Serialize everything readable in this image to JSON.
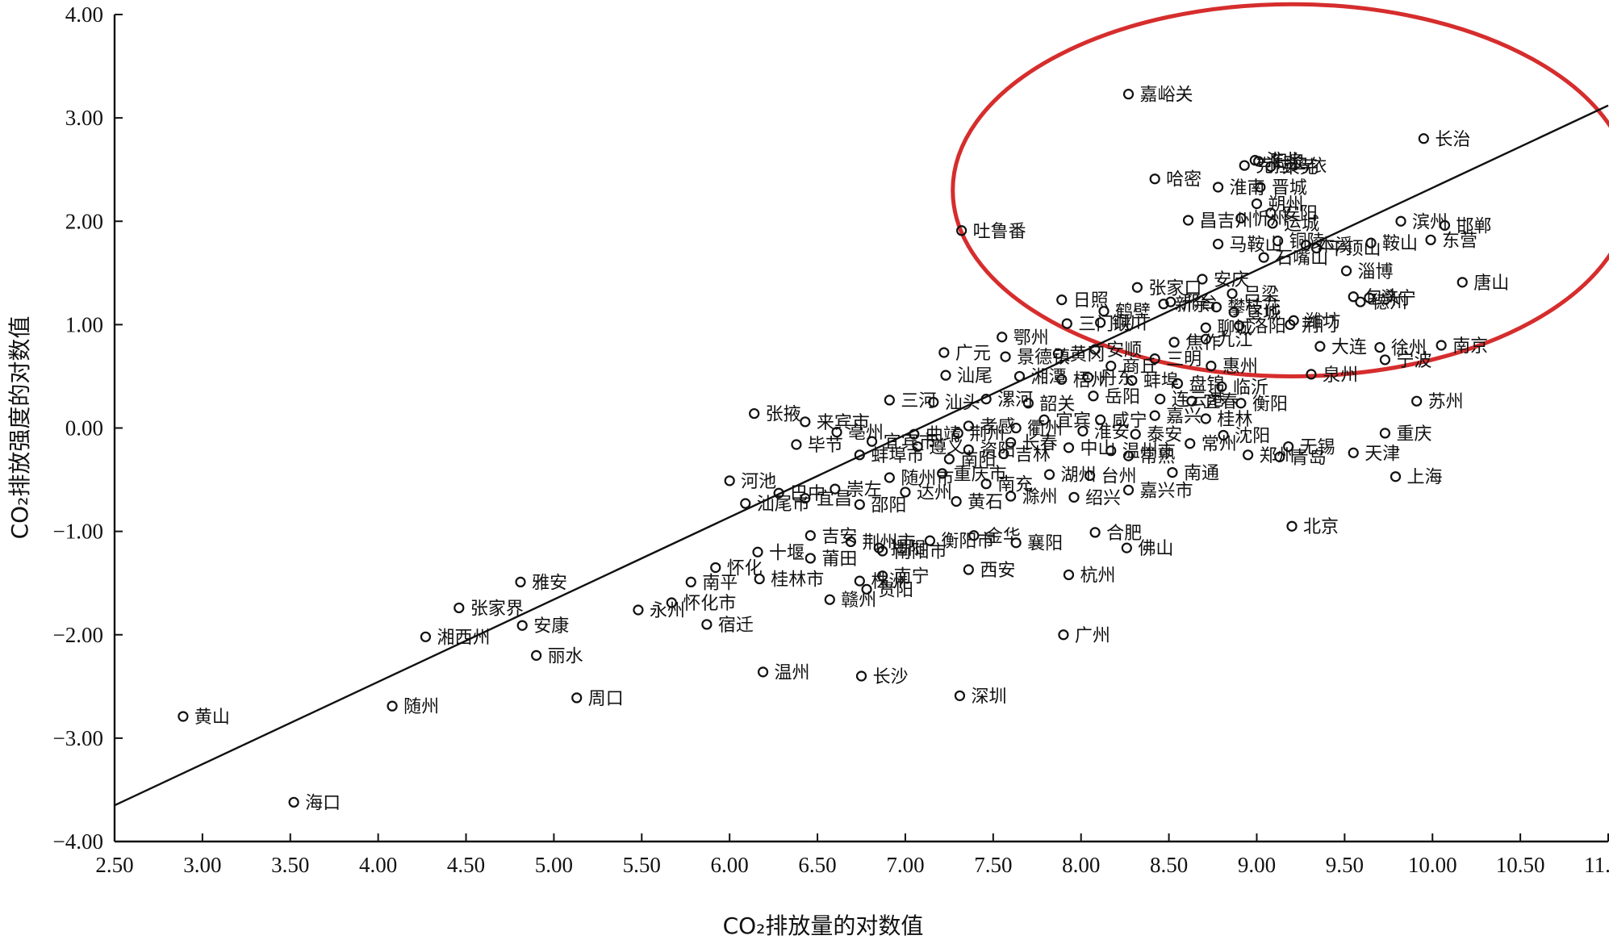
{
  "chart_data": {
    "type": "scatter",
    "xlabel": "CO₂排放量的对数值",
    "ylabel": "CO₂排放强度的对数值",
    "xlim": [
      2.5,
      11.0
    ],
    "ylim": [
      -4.0,
      4.0
    ],
    "xticks": [
      "2.50",
      "3.00",
      "3.50",
      "4.00",
      "4.50",
      "5.00",
      "5.50",
      "6.00",
      "6.50",
      "7.00",
      "7.50",
      "8.00",
      "8.50",
      "9.00",
      "9.50",
      "10.00",
      "10.50",
      "11.00"
    ],
    "yticks": [
      "−4.00",
      "−3.00",
      "−2.00",
      "−1.00",
      "0.00",
      "1.00",
      "2.00",
      "3.00",
      "4.00"
    ],
    "grid": false,
    "trendline": {
      "x1": 2.5,
      "y1": -3.65,
      "x2": 11.0,
      "y2": 3.12
    },
    "highlight_ellipse": {
      "cx": 9.2,
      "cy": 2.3,
      "rx": 1.93,
      "ry": 1.8,
      "color": "#d62d2d"
    },
    "points": [
      {
        "x": 8.27,
        "y": 3.23,
        "label": "嘉峪关"
      },
      {
        "x": 9.95,
        "y": 2.8,
        "label": "长治"
      },
      {
        "x": 9.01,
        "y": 2.58,
        "label": "阳泉"
      },
      {
        "x": 8.99,
        "y": 2.59,
        "label": "淮北"
      },
      {
        "x": 8.93,
        "y": 2.54,
        "label": "克拉玛依"
      },
      {
        "x": 9.08,
        "y": 2.53,
        "label": "莱芜"
      },
      {
        "x": 8.42,
        "y": 2.41,
        "label": "哈密"
      },
      {
        "x": 8.78,
        "y": 2.33,
        "label": "淮南"
      },
      {
        "x": 9.02,
        "y": 2.33,
        "label": "晋城"
      },
      {
        "x": 9.0,
        "y": 2.17,
        "label": "朔州"
      },
      {
        "x": 7.32,
        "y": 1.91,
        "label": "吐鲁番"
      },
      {
        "x": 8.61,
        "y": 2.01,
        "label": "昌吉州"
      },
      {
        "x": 8.91,
        "y": 2.03,
        "label": "忻州"
      },
      {
        "x": 9.08,
        "y": 2.08,
        "label": "安阳"
      },
      {
        "x": 9.09,
        "y": 1.98,
        "label": "运城"
      },
      {
        "x": 9.82,
        "y": 2.0,
        "label": "滨州"
      },
      {
        "x": 10.07,
        "y": 1.96,
        "label": "邯郸"
      },
      {
        "x": 9.99,
        "y": 1.82,
        "label": "东营"
      },
      {
        "x": 8.78,
        "y": 1.78,
        "label": "马鞍山"
      },
      {
        "x": 9.12,
        "y": 1.81,
        "label": "铜陵"
      },
      {
        "x": 9.28,
        "y": 1.77,
        "label": "本溪"
      },
      {
        "x": 9.34,
        "y": 1.74,
        "label": "平顶山"
      },
      {
        "x": 9.65,
        "y": 1.79,
        "label": "鞍山"
      },
      {
        "x": 9.04,
        "y": 1.65,
        "label": "石嘴山"
      },
      {
        "x": 9.51,
        "y": 1.52,
        "label": "淄博"
      },
      {
        "x": 10.17,
        "y": 1.41,
        "label": "唐山"
      },
      {
        "x": 8.32,
        "y": 1.36,
        "label": "张家口"
      },
      {
        "x": 8.69,
        "y": 1.44,
        "label": "安庆"
      },
      {
        "x": 8.86,
        "y": 1.3,
        "label": "吕梁"
      },
      {
        "x": 9.64,
        "y": 1.26,
        "label": "济宁"
      },
      {
        "x": 7.89,
        "y": 1.24,
        "label": "日照"
      },
      {
        "x": 8.13,
        "y": 1.13,
        "label": "鹤壁"
      },
      {
        "x": 8.47,
        "y": 1.2,
        "label": "新余"
      },
      {
        "x": 8.51,
        "y": 1.22,
        "label": "邢台"
      },
      {
        "x": 8.77,
        "y": 1.17,
        "label": "攀枝花"
      },
      {
        "x": 8.87,
        "y": 1.12,
        "label": "宣城"
      },
      {
        "x": 9.55,
        "y": 1.27,
        "label": "包头"
      },
      {
        "x": 9.21,
        "y": 1.04,
        "label": "潍坊"
      },
      {
        "x": 7.92,
        "y": 1.01,
        "label": "三门峡"
      },
      {
        "x": 8.11,
        "y": 1.02,
        "label": "铜川"
      },
      {
        "x": 8.9,
        "y": 0.99,
        "label": "洛阳"
      },
      {
        "x": 8.71,
        "y": 0.97,
        "label": "聊城"
      },
      {
        "x": 9.19,
        "y": 1.0,
        "label": "荆门"
      },
      {
        "x": 9.59,
        "y": 1.22,
        "label": "德州"
      },
      {
        "x": 9.36,
        "y": 0.79,
        "label": "大连"
      },
      {
        "x": 9.7,
        "y": 0.78,
        "label": "徐州"
      },
      {
        "x": 10.05,
        "y": 0.8,
        "label": "南京"
      },
      {
        "x": 8.71,
        "y": 0.86,
        "label": "九江"
      },
      {
        "x": 8.53,
        "y": 0.83,
        "label": "焦作"
      },
      {
        "x": 7.55,
        "y": 0.88,
        "label": "鄂州"
      },
      {
        "x": 7.22,
        "y": 0.73,
        "label": "广元"
      },
      {
        "x": 7.57,
        "y": 0.69,
        "label": "景德镇"
      },
      {
        "x": 7.87,
        "y": 0.72,
        "label": "黄冈"
      },
      {
        "x": 8.08,
        "y": 0.76,
        "label": "安顺"
      },
      {
        "x": 8.17,
        "y": 0.6,
        "label": "商丘"
      },
      {
        "x": 8.42,
        "y": 0.67,
        "label": "三明"
      },
      {
        "x": 8.74,
        "y": 0.6,
        "label": "惠州"
      },
      {
        "x": 9.73,
        "y": 0.66,
        "label": "宁波"
      },
      {
        "x": 7.23,
        "y": 0.51,
        "label": "汕尾"
      },
      {
        "x": 7.65,
        "y": 0.5,
        "label": "湘潭"
      },
      {
        "x": 7.89,
        "y": 0.47,
        "label": "梧州"
      },
      {
        "x": 8.04,
        "y": 0.49,
        "label": "丹东"
      },
      {
        "x": 8.29,
        "y": 0.46,
        "label": "蚌埠"
      },
      {
        "x": 8.55,
        "y": 0.43,
        "label": "盘锦"
      },
      {
        "x": 8.8,
        "y": 0.4,
        "label": "临沂"
      },
      {
        "x": 9.31,
        "y": 0.52,
        "label": "泉州"
      },
      {
        "x": 6.91,
        "y": 0.27,
        "label": "三河"
      },
      {
        "x": 7.16,
        "y": 0.25,
        "label": "汕头"
      },
      {
        "x": 7.46,
        "y": 0.28,
        "label": "漯河"
      },
      {
        "x": 7.7,
        "y": 0.24,
        "label": "韶关"
      },
      {
        "x": 8.07,
        "y": 0.31,
        "label": "岳阳"
      },
      {
        "x": 8.45,
        "y": 0.28,
        "label": "连云港"
      },
      {
        "x": 8.63,
        "y": 0.26,
        "label": "宜春"
      },
      {
        "x": 8.91,
        "y": 0.24,
        "label": "衡阳"
      },
      {
        "x": 9.91,
        "y": 0.26,
        "label": "苏州"
      },
      {
        "x": 6.14,
        "y": 0.14,
        "label": "张掖"
      },
      {
        "x": 6.43,
        "y": 0.06,
        "label": "来宾市"
      },
      {
        "x": 7.36,
        "y": 0.02,
        "label": "孝感"
      },
      {
        "x": 7.79,
        "y": 0.08,
        "label": "宜宾"
      },
      {
        "x": 8.11,
        "y": 0.08,
        "label": "咸宁"
      },
      {
        "x": 8.42,
        "y": 0.12,
        "label": "嘉兴"
      },
      {
        "x": 8.71,
        "y": 0.09,
        "label": "桂林"
      },
      {
        "x": 6.61,
        "y": -0.04,
        "label": "亳州"
      },
      {
        "x": 7.05,
        "y": -0.06,
        "label": "曲靖"
      },
      {
        "x": 7.3,
        "y": -0.05,
        "label": "荆州"
      },
      {
        "x": 7.63,
        "y": 0.0,
        "label": "衢州"
      },
      {
        "x": 8.01,
        "y": -0.03,
        "label": "淮安"
      },
      {
        "x": 8.31,
        "y": -0.06,
        "label": "泰安"
      },
      {
        "x": 8.81,
        "y": -0.07,
        "label": "沈阳"
      },
      {
        "x": 9.73,
        "y": -0.05,
        "label": "重庆"
      },
      {
        "x": 6.38,
        "y": -0.16,
        "label": "毕节"
      },
      {
        "x": 6.81,
        "y": -0.13,
        "label": "宜宾市"
      },
      {
        "x": 7.07,
        "y": -0.18,
        "label": "遵义"
      },
      {
        "x": 7.36,
        "y": -0.21,
        "label": "资阳"
      },
      {
        "x": 7.6,
        "y": -0.14,
        "label": "长春"
      },
      {
        "x": 7.93,
        "y": -0.19,
        "label": "中山"
      },
      {
        "x": 8.17,
        "y": -0.22,
        "label": "温州市"
      },
      {
        "x": 8.62,
        "y": -0.15,
        "label": "常州"
      },
      {
        "x": 9.18,
        "y": -0.18,
        "label": "无锡"
      },
      {
        "x": 9.55,
        "y": -0.24,
        "label": "天津"
      },
      {
        "x": 6.74,
        "y": -0.26,
        "label": "蚌埠市"
      },
      {
        "x": 7.25,
        "y": -0.3,
        "label": "南阳"
      },
      {
        "x": 7.56,
        "y": -0.25,
        "label": "吉林"
      },
      {
        "x": 8.27,
        "y": -0.27,
        "label": "常熟"
      },
      {
        "x": 8.95,
        "y": -0.26,
        "label": "郑州"
      },
      {
        "x": 9.13,
        "y": -0.28,
        "label": "青岛"
      },
      {
        "x": 9.79,
        "y": -0.47,
        "label": "上海"
      },
      {
        "x": 6.0,
        "y": -0.51,
        "label": "河池"
      },
      {
        "x": 6.28,
        "y": -0.63,
        "label": "巴中"
      },
      {
        "x": 6.6,
        "y": -0.59,
        "label": "崇左"
      },
      {
        "x": 6.91,
        "y": -0.48,
        "label": "随州市"
      },
      {
        "x": 7.21,
        "y": -0.44,
        "label": "重庆市"
      },
      {
        "x": 7.46,
        "y": -0.54,
        "label": "南充"
      },
      {
        "x": 7.82,
        "y": -0.45,
        "label": "湖州"
      },
      {
        "x": 8.05,
        "y": -0.46,
        "label": "台州"
      },
      {
        "x": 8.52,
        "y": -0.43,
        "label": "南通"
      },
      {
        "x": 6.09,
        "y": -0.73,
        "label": "汕尾市"
      },
      {
        "x": 6.43,
        "y": -0.68,
        "label": "宜昌"
      },
      {
        "x": 6.74,
        "y": -0.74,
        "label": "邵阳"
      },
      {
        "x": 7.0,
        "y": -0.62,
        "label": "达州"
      },
      {
        "x": 7.29,
        "y": -0.71,
        "label": "黄石"
      },
      {
        "x": 7.6,
        "y": -0.66,
        "label": "滁州"
      },
      {
        "x": 7.96,
        "y": -0.67,
        "label": "绍兴"
      },
      {
        "x": 8.27,
        "y": -0.6,
        "label": "嘉兴市"
      },
      {
        "x": 9.2,
        "y": -0.95,
        "label": "北京"
      },
      {
        "x": 6.46,
        "y": -1.04,
        "label": "吉安"
      },
      {
        "x": 6.69,
        "y": -1.1,
        "label": "荆州市"
      },
      {
        "x": 6.85,
        "y": -1.16,
        "label": "揭阳"
      },
      {
        "x": 7.14,
        "y": -1.09,
        "label": "衡阳市"
      },
      {
        "x": 7.39,
        "y": -1.04,
        "label": "金华"
      },
      {
        "x": 7.63,
        "y": -1.11,
        "label": "襄阳"
      },
      {
        "x": 8.08,
        "y": -1.01,
        "label": "合肥"
      },
      {
        "x": 8.26,
        "y": -1.16,
        "label": "佛山"
      },
      {
        "x": 6.16,
        "y": -1.2,
        "label": "十堰"
      },
      {
        "x": 6.46,
        "y": -1.26,
        "label": "莆田"
      },
      {
        "x": 6.87,
        "y": -1.19,
        "label": "南阳市"
      },
      {
        "x": 7.36,
        "y": -1.37,
        "label": "西安"
      },
      {
        "x": 7.93,
        "y": -1.42,
        "label": "杭州"
      },
      {
        "x": 4.81,
        "y": -1.49,
        "label": "雅安"
      },
      {
        "x": 5.78,
        "y": -1.49,
        "label": "南平"
      },
      {
        "x": 5.92,
        "y": -1.35,
        "label": "怀化"
      },
      {
        "x": 6.17,
        "y": -1.46,
        "label": "桂林市"
      },
      {
        "x": 6.74,
        "y": -1.48,
        "label": "株洲"
      },
      {
        "x": 6.87,
        "y": -1.43,
        "label": "南宁"
      },
      {
        "x": 4.46,
        "y": -1.74,
        "label": "张家界"
      },
      {
        "x": 5.48,
        "y": -1.76,
        "label": "永州"
      },
      {
        "x": 5.67,
        "y": -1.69,
        "label": "怀化市"
      },
      {
        "x": 6.57,
        "y": -1.66,
        "label": "赣州"
      },
      {
        "x": 6.78,
        "y": -1.56,
        "label": "贵阳"
      },
      {
        "x": 4.27,
        "y": -2.02,
        "label": "湘西州"
      },
      {
        "x": 4.82,
        "y": -1.91,
        "label": "安康"
      },
      {
        "x": 5.87,
        "y": -1.9,
        "label": "宿迁"
      },
      {
        "x": 7.9,
        "y": -2.0,
        "label": "广州"
      },
      {
        "x": 4.9,
        "y": -2.2,
        "label": "丽水"
      },
      {
        "x": 6.19,
        "y": -2.36,
        "label": "温州"
      },
      {
        "x": 6.75,
        "y": -2.4,
        "label": "长沙"
      },
      {
        "x": 2.89,
        "y": -2.79,
        "label": "黄山"
      },
      {
        "x": 4.08,
        "y": -2.69,
        "label": "随州"
      },
      {
        "x": 5.13,
        "y": -2.61,
        "label": "周口"
      },
      {
        "x": 7.31,
        "y": -2.59,
        "label": "深圳"
      },
      {
        "x": 3.52,
        "y": -3.62,
        "label": "海口"
      }
    ]
  }
}
